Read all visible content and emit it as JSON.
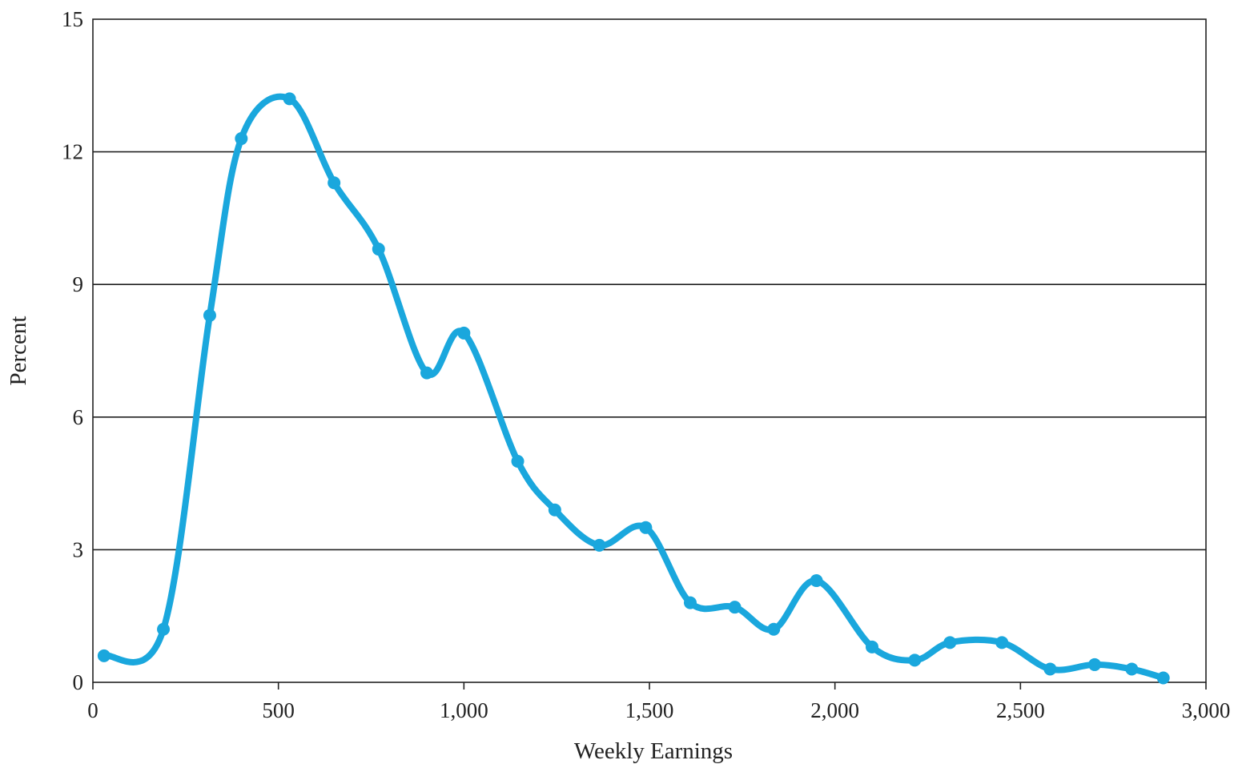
{
  "chart_data": {
    "type": "line",
    "title": "",
    "xlabel": "Weekly Earnings",
    "ylabel": "Percent",
    "xlim": [
      0,
      3000
    ],
    "ylim": [
      0,
      15
    ],
    "x_ticks": [
      0,
      500,
      1000,
      1500,
      2000,
      2500,
      3000
    ],
    "x_tick_labels": [
      "0",
      "500",
      "1,000",
      "1,500",
      "2,000",
      "2,500",
      "3,000"
    ],
    "y_ticks": [
      0,
      3,
      6,
      9,
      12,
      15
    ],
    "y_tick_labels": [
      "0",
      "3",
      "6",
      "9",
      "12",
      "15"
    ],
    "grid": "horizontal",
    "legend": "none",
    "line_color": "#1aa7dd",
    "series": [
      {
        "x": [
          30,
          190,
          315,
          400,
          530,
          650,
          770,
          900,
          1000,
          1145,
          1245,
          1365,
          1490,
          1610,
          1730,
          1835,
          1950,
          2100,
          2215,
          2310,
          2450,
          2580,
          2700,
          2800,
          2885
        ],
        "y": [
          0.6,
          1.2,
          8.3,
          12.3,
          13.2,
          11.3,
          9.8,
          7.0,
          7.9,
          5.0,
          3.9,
          3.1,
          3.5,
          1.8,
          1.7,
          1.2,
          2.3,
          0.8,
          0.5,
          0.9,
          0.9,
          0.3,
          0.4,
          0.3,
          0.1
        ]
      }
    ]
  }
}
